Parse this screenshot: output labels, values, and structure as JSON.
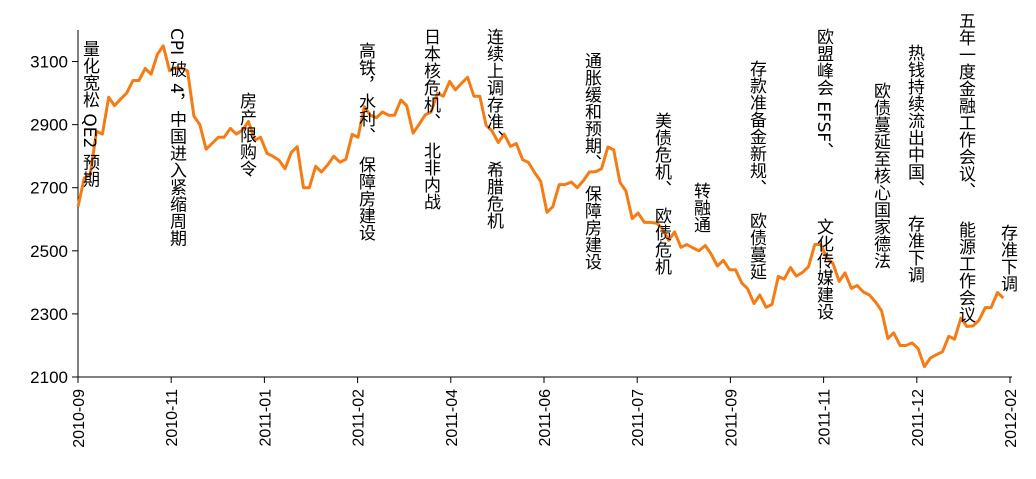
{
  "chart_data": {
    "type": "line",
    "title": "",
    "xlabel": "",
    "ylabel": "",
    "ylim": [
      2100,
      3200
    ],
    "y_ticks": [
      "3100",
      "2900",
      "2700",
      "2500",
      "2300",
      "2100"
    ],
    "x_ticks": [
      "2010-09",
      "2010-11",
      "2011-01",
      "2011-02",
      "2011-04",
      "2011-06",
      "2011-07",
      "2011-09",
      "2011-11",
      "2011-12",
      "2012-02"
    ],
    "grid": false,
    "legend": "none",
    "colors": {
      "line": "#F57C14",
      "axis": "#000000"
    },
    "series": [
      {
        "x": [
          "2010-09-01",
          "2010-09-08",
          "2010-09-15",
          "2010-09-22",
          "2010-09-29",
          "2010-10-06",
          "2010-10-13",
          "2010-10-20",
          "2010-10-27",
          "2010-11-03",
          "2010-11-10",
          "2010-11-17",
          "2010-11-24",
          "2010-12-01",
          "2010-12-08",
          "2010-12-15",
          "2010-12-22",
          "2010-12-29",
          "2011-01-05",
          "2011-01-12",
          "2011-01-19",
          "2011-01-26",
          "2011-02-02",
          "2011-02-09",
          "2011-02-16",
          "2011-02-23",
          "2011-03-02",
          "2011-03-09",
          "2011-03-16",
          "2011-03-23",
          "2011-03-30",
          "2011-04-06",
          "2011-04-13",
          "2011-04-20",
          "2011-04-27",
          "2011-05-04",
          "2011-05-11",
          "2011-05-18",
          "2011-05-25",
          "2011-06-01",
          "2011-06-08",
          "2011-06-15",
          "2011-06-22",
          "2011-06-29",
          "2011-07-06",
          "2011-07-13",
          "2011-07-20",
          "2011-07-27",
          "2011-08-03",
          "2011-08-10",
          "2011-08-17",
          "2011-08-24",
          "2011-08-31",
          "2011-09-07",
          "2011-09-14",
          "2011-09-21",
          "2011-09-28",
          "2011-10-05",
          "2011-10-12",
          "2011-10-19",
          "2011-10-26",
          "2011-11-02",
          "2011-11-09",
          "2011-11-16",
          "2011-11-23",
          "2011-11-30",
          "2011-12-07",
          "2011-12-14",
          "2011-12-21",
          "2011-12-28",
          "2012-01-04",
          "2012-01-11",
          "2012-01-18",
          "2012-01-25",
          "2012-02-01",
          "2012-02-08",
          "2012-02-15"
        ],
        "values": [
          2640,
          2740,
          2870,
          2960,
          3000,
          3040,
          3060,
          3150,
          3080,
          3070,
          2900,
          2840,
          2860,
          2870,
          2910,
          2860,
          2800,
          2760,
          2830,
          2700,
          2750,
          2800,
          2790,
          2860,
          2930,
          2940,
          2930,
          2960,
          2900,
          2940,
          2990,
          3010,
          3050,
          2990,
          2880,
          2870,
          2840,
          2780,
          2720,
          2640,
          2710,
          2700,
          2750,
          2760,
          2820,
          2690,
          2620,
          2590,
          2570,
          2560,
          2520,
          2500,
          2490,
          2470,
          2440,
          2380,
          2360,
          2330,
          2410,
          2420,
          2450,
          2520,
          2460,
          2430,
          2390,
          2360,
          2310,
          2240,
          2200,
          2190,
          2160,
          2180,
          2220,
          2260,
          2280,
          2320,
          2350
        ]
      }
    ],
    "annotations": [
      "量化宽松 QE2 预期",
      "CPI 破 4，中国进入紧缩周期",
      "房产限购令",
      "高铁，水利、保障房建设",
      "日本核危机、北非内战",
      "连续上调存准、希腊危机",
      "通胀缓和预期、保障房建设",
      "美债危机、欧债危机",
      "转融通",
      "存款准备金新规、欧债蔓延",
      "欧盟峰会 EFSF、文化传媒建设",
      "欧债蔓延至核心国家德法",
      "热钱持续流出中国、存准下调",
      "五年一度金融工作会议、能源工作会议",
      "存准下调"
    ]
  }
}
